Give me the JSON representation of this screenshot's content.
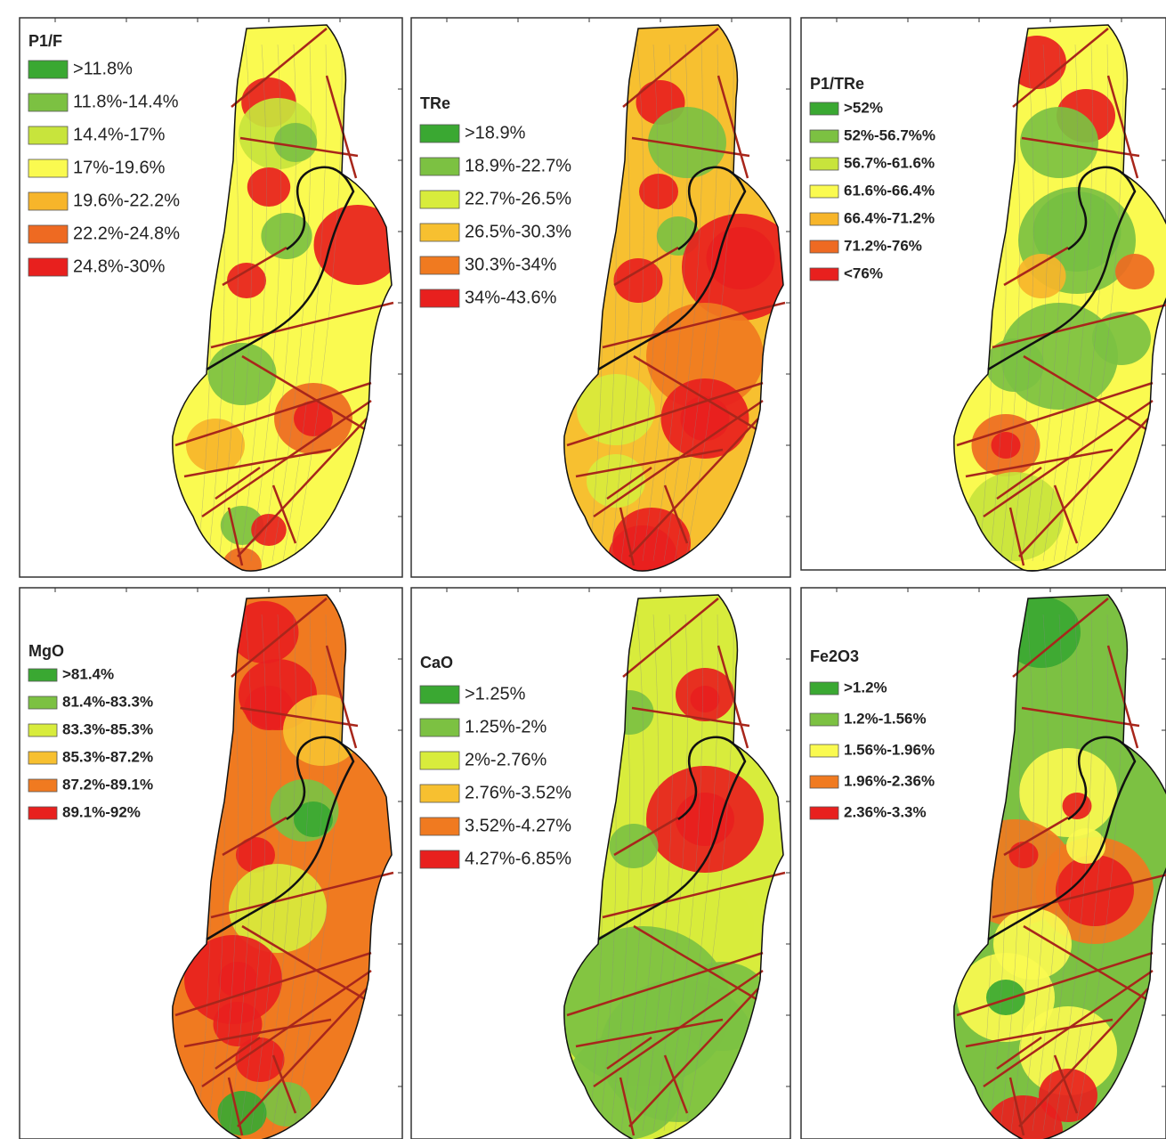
{
  "panels": [
    {
      "title": "P1/F",
      "legend": [
        {
          "label": ">11.8%",
          "color": "#3aa832"
        },
        {
          "label": "11.8%-14.4%",
          "color": "#7cc142"
        },
        {
          "label": "14.4%-17%",
          "color": "#c8e43c"
        },
        {
          "label": "17%-19.6%",
          "color": "#fafa50"
        },
        {
          "label": "19.6%-22.2%",
          "color": "#f7b52a"
        },
        {
          "label": "22.2%-24.8%",
          "color": "#ee6a22"
        },
        {
          "label": "24.8%-30%",
          "color": "#e8201e"
        }
      ]
    },
    {
      "title": "TRe",
      "legend": [
        {
          "label": ">18.9%",
          "color": "#3aa832"
        },
        {
          "label": "18.9%-22.7%",
          "color": "#7cc142"
        },
        {
          "label": "22.7%-26.5%",
          "color": "#d8ec3c"
        },
        {
          "label": "26.5%-30.3%",
          "color": "#f7c030"
        },
        {
          "label": "30.3%-34%",
          "color": "#f07a20"
        },
        {
          "label": "34%-43.6%",
          "color": "#e8201e"
        }
      ]
    },
    {
      "title": "P1/TRe",
      "legend": [
        {
          "label": ">52%",
          "color": "#3aa832"
        },
        {
          "label": "52%-56.7%%",
          "color": "#7cc142"
        },
        {
          "label": "56.7%-61.6%",
          "color": "#c8e43c"
        },
        {
          "label": "61.6%-66.4%",
          "color": "#fafa50"
        },
        {
          "label": "66.4%-71.2%",
          "color": "#f7b52a"
        },
        {
          "label": "71.2%-76%",
          "color": "#ee6a22"
        },
        {
          "label": "<76%",
          "color": "#e8201e"
        }
      ]
    },
    {
      "title": "MgO",
      "legend": [
        {
          "label": ">81.4%",
          "color": "#3aa832"
        },
        {
          "label": "81.4%-83.3%",
          "color": "#7cc142"
        },
        {
          "label": "83.3%-85.3%",
          "color": "#d8ec3c"
        },
        {
          "label": "85.3%-87.2%",
          "color": "#f7c030"
        },
        {
          "label": "87.2%-89.1%",
          "color": "#f07a20"
        },
        {
          "label": "89.1%-92%",
          "color": "#e8201e"
        }
      ]
    },
    {
      "title": "CaO",
      "legend": [
        {
          "label": ">1.25%",
          "color": "#3aa832"
        },
        {
          "label": "1.25%-2%",
          "color": "#7cc142"
        },
        {
          "label": "2%-2.76%",
          "color": "#d8ec3c"
        },
        {
          "label": "2.76%-3.52%",
          "color": "#f7c030"
        },
        {
          "label": "3.52%-4.27%",
          "color": "#f07a20"
        },
        {
          "label": "4.27%-6.85%",
          "color": "#e8201e"
        }
      ]
    },
    {
      "title": "Fe2O3",
      "legend": [
        {
          "label": ">1.2%",
          "color": "#3aa832"
        },
        {
          "label": "1.2%-1.56%",
          "color": "#7cc142"
        },
        {
          "label": "1.56%-1.96%",
          "color": "#fafa50"
        },
        {
          "label": "1.96%-2.36%",
          "color": "#f07a20"
        },
        {
          "label": "2.36%-3.3%",
          "color": "#e8201e"
        }
      ]
    }
  ]
}
